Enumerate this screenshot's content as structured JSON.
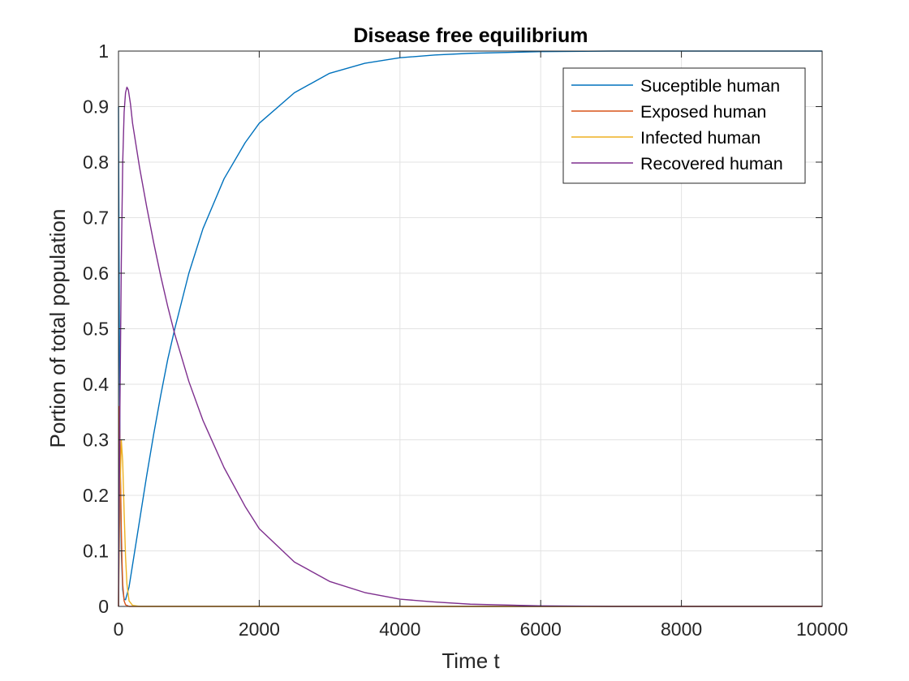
{
  "chart_data": {
    "type": "line",
    "title": "Disease free equilibrium",
    "xlabel": "Time t",
    "ylabel": "Portion of total population",
    "xlim": [
      0,
      10000
    ],
    "ylim": [
      0,
      1
    ],
    "xticks": [
      0,
      2000,
      4000,
      6000,
      8000,
      10000
    ],
    "xtick_labels": [
      "0",
      "2000",
      "4000",
      "6000",
      "8000",
      "10000"
    ],
    "yticks": [
      0,
      0.1,
      0.2,
      0.3,
      0.4,
      0.5,
      0.6,
      0.7,
      0.8,
      0.9,
      1
    ],
    "ytick_labels": [
      "0",
      "0.1",
      "0.2",
      "0.3",
      "0.4",
      "0.5",
      "0.6",
      "0.7",
      "0.8",
      "0.9",
      "1"
    ],
    "grid": true,
    "box": true,
    "legend_position": "top-right",
    "series": [
      {
        "name": "Suceptible human",
        "color": "#0072BD",
        "x": [
          0,
          10,
          20,
          40,
          60,
          80,
          100,
          150,
          200,
          300,
          400,
          500,
          600,
          700,
          800,
          1000,
          1200,
          1500,
          1800,
          2000,
          2500,
          3000,
          3500,
          4000,
          4500,
          5000,
          6000,
          7000,
          8000,
          10000
        ],
        "y": [
          0.9,
          0.55,
          0.3,
          0.1,
          0.03,
          0.013,
          0.012,
          0.035,
          0.075,
          0.155,
          0.235,
          0.31,
          0.38,
          0.445,
          0.5,
          0.6,
          0.68,
          0.77,
          0.835,
          0.87,
          0.925,
          0.96,
          0.978,
          0.988,
          0.993,
          0.996,
          0.999,
          1.0,
          1.0,
          1.0
        ]
      },
      {
        "name": "Exposed human",
        "color": "#D95319",
        "x": [
          0,
          10,
          20,
          30,
          40,
          50,
          60,
          80,
          100,
          150,
          200,
          10000
        ],
        "y": [
          0.0,
          0.36,
          0.3,
          0.22,
          0.14,
          0.08,
          0.04,
          0.01,
          0.003,
          0.0,
          0.0,
          0.0
        ]
      },
      {
        "name": "Infected human",
        "color": "#EDB120",
        "x": [
          0,
          20,
          40,
          60,
          80,
          100,
          120,
          150,
          200,
          300,
          10000
        ],
        "y": [
          0.0,
          0.2,
          0.3,
          0.26,
          0.17,
          0.09,
          0.04,
          0.01,
          0.002,
          0.0,
          0.0
        ]
      },
      {
        "name": "Recovered human",
        "color": "#7E2F8E",
        "x": [
          0,
          20,
          40,
          60,
          80,
          100,
          120,
          140,
          170,
          200,
          300,
          400,
          500,
          600,
          700,
          800,
          1000,
          1200,
          1500,
          1800,
          2000,
          2500,
          3000,
          3500,
          4000,
          4500,
          5000,
          6000,
          7000,
          8000,
          10000
        ],
        "y": [
          0.0,
          0.35,
          0.62,
          0.8,
          0.89,
          0.925,
          0.935,
          0.93,
          0.905,
          0.87,
          0.79,
          0.72,
          0.655,
          0.595,
          0.54,
          0.49,
          0.405,
          0.335,
          0.25,
          0.18,
          0.14,
          0.08,
          0.045,
          0.025,
          0.013,
          0.008,
          0.004,
          0.001,
          0.0,
          0.0,
          0.0
        ]
      }
    ]
  }
}
